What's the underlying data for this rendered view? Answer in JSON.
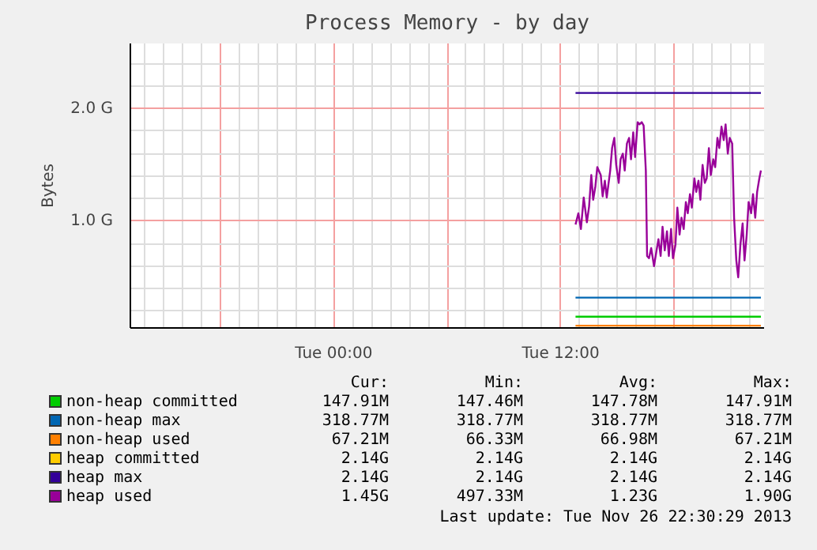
{
  "chart_data": {
    "type": "line",
    "title": "Process Memory - by day",
    "ylabel": "Bytes",
    "xlim": [
      "2013-11-25T13:15",
      "2013-11-26T22:45"
    ],
    "ylim": [
      0.05,
      2.58
    ],
    "xticks": [
      {
        "value": "2013-11-25T18:00",
        "label": null
      },
      {
        "value": "2013-11-26T00:00",
        "label": "Tue 00:00"
      },
      {
        "value": "2013-11-26T06:00",
        "label": null
      },
      {
        "value": "2013-11-26T12:00",
        "label": "Tue 12:00"
      },
      {
        "value": "2013-11-26T18:00",
        "label": null
      }
    ],
    "yticks": [
      {
        "value": 1.0,
        "label": "1.0 G"
      },
      {
        "value": 2.0,
        "label": "2.0 G"
      }
    ],
    "grid": true,
    "legend": "bottom",
    "series": [
      {
        "name": "non-heap committed",
        "color": "#00cc00",
        "x": [
          "2013-11-26T12:47",
          "2013-11-26T22:35"
        ],
        "values": [
          0.15,
          0.15
        ]
      },
      {
        "name": "non-heap max",
        "color": "#0066b3",
        "x": [
          "2013-11-26T12:47",
          "2013-11-26T22:35"
        ],
        "values": [
          0.32,
          0.32
        ]
      },
      {
        "name": "non-heap used",
        "color": "#ff8000",
        "x": [
          "2013-11-26T12:47",
          "2013-11-26T22:35"
        ],
        "values": [
          0.07,
          0.07
        ]
      },
      {
        "name": "heap committed",
        "color": "#ffcc00"
      },
      {
        "name": "heap max",
        "color": "#330099",
        "x": [
          "2013-11-26T12:47",
          "2013-11-26T22:35"
        ],
        "values": [
          2.14,
          2.14
        ]
      },
      {
        "name": "heap used",
        "color": "#990099",
        "x": [
          "2013-11-26T12:47",
          "2013-11-26T12:56",
          "2013-11-26T13:04",
          "2013-11-26T13:13",
          "2013-11-26T13:23",
          "2013-11-26T13:30",
          "2013-11-26T13:37",
          "2013-11-26T13:43",
          "2013-11-26T13:50",
          "2013-11-26T13:56",
          "2013-11-26T14:07",
          "2013-11-26T14:13",
          "2013-11-26T14:20",
          "2013-11-26T14:26",
          "2013-11-26T14:37",
          "2013-11-26T14:43",
          "2013-11-26T14:50",
          "2013-11-26T14:56",
          "2013-11-26T15:04",
          "2013-11-26T15:10",
          "2013-11-26T15:17",
          "2013-11-26T15:23",
          "2013-11-26T15:30",
          "2013-11-26T15:37",
          "2013-11-26T15:43",
          "2013-11-26T15:50",
          "2013-11-26T15:56",
          "2013-11-26T16:04",
          "2013-11-26T16:10",
          "2013-11-26T16:17",
          "2013-11-26T16:23",
          "2013-11-26T16:30",
          "2013-11-26T16:34",
          "2013-11-26T16:40",
          "2013-11-26T16:47",
          "2013-11-26T16:56",
          "2013-11-26T17:04",
          "2013-11-26T17:10",
          "2013-11-26T17:17",
          "2013-11-26T17:23",
          "2013-11-26T17:30",
          "2013-11-26T17:37",
          "2013-11-26T17:43",
          "2013-11-26T17:50",
          "2013-11-26T17:56",
          "2013-11-26T18:04",
          "2013-11-26T18:10",
          "2013-11-26T18:17",
          "2013-11-26T18:23",
          "2013-11-26T18:30",
          "2013-11-26T18:37",
          "2013-11-26T18:43",
          "2013-11-26T18:50",
          "2013-11-26T18:56",
          "2013-11-26T19:04",
          "2013-11-26T19:10",
          "2013-11-26T19:17",
          "2013-11-26T19:23",
          "2013-11-26T19:30",
          "2013-11-26T19:37",
          "2013-11-26T19:43",
          "2013-11-26T19:50",
          "2013-11-26T19:56",
          "2013-11-26T20:04",
          "2013-11-26T20:10",
          "2013-11-26T20:17",
          "2013-11-26T20:23",
          "2013-11-26T20:30",
          "2013-11-26T20:37",
          "2013-11-26T20:43",
          "2013-11-26T20:50",
          "2013-11-26T20:56",
          "2013-11-26T21:04",
          "2013-11-26T21:10",
          "2013-11-26T21:17",
          "2013-11-26T21:23",
          "2013-11-26T21:30",
          "2013-11-26T21:37",
          "2013-11-26T21:43",
          "2013-11-26T21:50",
          "2013-11-26T21:56",
          "2013-11-26T22:04",
          "2013-11-26T22:10",
          "2013-11-26T22:17",
          "2013-11-26T22:23",
          "2013-11-26T22:30",
          "2013-11-26T22:35"
        ],
        "values": [
          0.97,
          1.07,
          0.93,
          1.21,
          0.99,
          1.13,
          1.41,
          1.19,
          1.31,
          1.48,
          1.41,
          1.22,
          1.36,
          1.21,
          1.45,
          1.65,
          1.74,
          1.5,
          1.34,
          1.55,
          1.6,
          1.45,
          1.69,
          1.74,
          1.55,
          1.79,
          1.57,
          1.88,
          1.86,
          1.88,
          1.85,
          1.45,
          0.69,
          0.67,
          0.76,
          0.6,
          0.74,
          0.84,
          0.69,
          0.95,
          0.74,
          0.91,
          0.69,
          0.93,
          0.67,
          0.79,
          1.12,
          0.88,
          1.03,
          0.93,
          1.17,
          1.07,
          1.24,
          1.12,
          1.38,
          1.26,
          1.36,
          1.19,
          1.5,
          1.34,
          1.38,
          1.65,
          1.41,
          1.55,
          1.48,
          1.74,
          1.65,
          1.84,
          1.72,
          1.86,
          1.6,
          1.74,
          1.69,
          1.03,
          0.65,
          0.5,
          0.79,
          0.98,
          0.65,
          0.88,
          1.17,
          1.07,
          1.24,
          1.03,
          1.26,
          1.38,
          1.45
        ]
      }
    ],
    "annotations": [
      "Cur:",
      "Min:",
      "Avg:",
      "Max:",
      "147.91M",
      "147.46M",
      "147.78M",
      "147.91M",
      "318.77M",
      "318.77M",
      "318.77M",
      "318.77M",
      "67.21M",
      "66.33M",
      "66.98M",
      "67.21M",
      "2.14G",
      "2.14G",
      "2.14G",
      "2.14G",
      "2.14G",
      "2.14G",
      "2.14G",
      "2.14G",
      "1.45G",
      "497.33M",
      "1.23G",
      "1.90G",
      "Last update: Tue Nov 26 22:30:29 2013"
    ]
  }
}
